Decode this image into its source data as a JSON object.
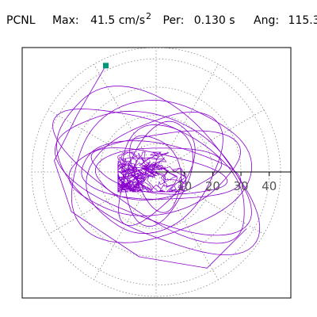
{
  "header": {
    "station": "PCNL",
    "max_label": "Max:",
    "max_value": "41.5 cm/s",
    "max_unit_exponent": "2",
    "per_label": "Per:",
    "per_value": "0.130 s",
    "ang_label": "Ang:",
    "ang_value": "115.3"
  },
  "chart_data": {
    "type": "polar-orbit",
    "title": "",
    "radial_ticks": [
      "10",
      "20",
      "30",
      "40"
    ],
    "radial_tick_values": [
      10,
      20,
      30,
      40
    ],
    "rmax": 44,
    "angular_gridlines_deg": [
      0,
      30,
      60,
      90,
      120,
      150,
      180,
      210,
      240,
      270,
      300,
      330
    ],
    "grid": true,
    "colors": {
      "trace": "#8800cc",
      "marker": "#009977",
      "grid": "#888888",
      "axis": "#000000"
    },
    "peak_point": {
      "x": -17.8,
      "y": 37.6
    },
    "trace_loops": [
      {
        "rx": 30,
        "ry": 14,
        "rot": 10
      },
      {
        "rx": 26,
        "ry": 18,
        "rot": 35
      },
      {
        "rx": 28,
        "ry": 10,
        "rot": -5
      },
      {
        "rx": 36,
        "ry": 18,
        "rot": -22
      },
      {
        "rx": 38,
        "ry": 16,
        "rot": -30
      },
      {
        "rx": 20,
        "ry": 10,
        "rot": 60
      },
      {
        "rx": 14,
        "ry": 8,
        "rot": 110
      },
      {
        "rx": 22,
        "ry": 9,
        "rot": 5
      },
      {
        "rx": 40,
        "ry": 22,
        "rot": -35
      },
      {
        "rx": 32,
        "ry": 24,
        "rot": 15
      },
      {
        "rx": 24,
        "ry": 7,
        "rot": 170
      },
      {
        "rx": 18,
        "ry": 12,
        "rot": 80
      }
    ]
  }
}
